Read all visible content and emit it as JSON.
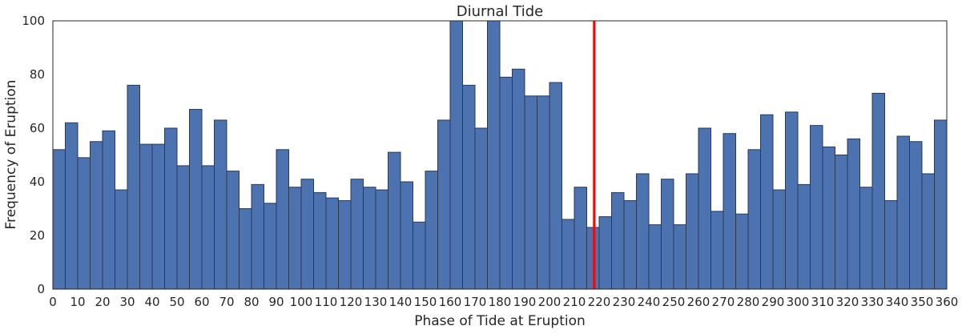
{
  "chart_data": {
    "type": "bar",
    "title": "Diurnal Tide",
    "xlabel": "Phase of Tide at Eruption",
    "ylabel": "Frequency of Eruption",
    "xlim": [
      0,
      360
    ],
    "ylim": [
      0,
      100
    ],
    "bin_width": 5,
    "x_ticks": [
      0,
      10,
      20,
      30,
      40,
      50,
      60,
      70,
      80,
      90,
      100,
      110,
      120,
      130,
      140,
      150,
      160,
      170,
      180,
      190,
      200,
      210,
      220,
      230,
      240,
      250,
      260,
      270,
      280,
      290,
      300,
      310,
      320,
      330,
      340,
      350,
      360
    ],
    "y_ticks": [
      0,
      20,
      40,
      60,
      80,
      100
    ],
    "bin_starts": [
      0,
      5,
      10,
      15,
      20,
      25,
      30,
      35,
      40,
      45,
      50,
      55,
      60,
      65,
      70,
      75,
      80,
      85,
      90,
      95,
      100,
      105,
      110,
      115,
      120,
      125,
      130,
      135,
      140,
      145,
      150,
      155,
      160,
      165,
      170,
      175,
      180,
      185,
      190,
      195,
      200,
      205,
      210,
      215,
      220,
      225,
      230,
      235,
      240,
      245,
      250,
      255,
      260,
      265,
      270,
      275,
      280,
      285,
      290,
      295,
      300,
      305,
      310,
      315,
      320,
      325,
      330,
      335,
      340,
      345,
      350,
      355
    ],
    "values": [
      52,
      62,
      49,
      55,
      59,
      37,
      76,
      54,
      54,
      60,
      46,
      67,
      46,
      63,
      44,
      30,
      39,
      32,
      52,
      38,
      41,
      36,
      34,
      33,
      41,
      38,
      37,
      51,
      40,
      25,
      44,
      63,
      100,
      76,
      60,
      100,
      79,
      82,
      72,
      72,
      77,
      26,
      38,
      23,
      27,
      36,
      33,
      43,
      24,
      41,
      24,
      43,
      60,
      29,
      58,
      28,
      52,
      65,
      37,
      66,
      39,
      61,
      53,
      50,
      56,
      38,
      73,
      33,
      57,
      55,
      43,
      63
    ],
    "vline": {
      "x": 218,
      "color": "#ff0000"
    },
    "bar_color": "#4c72b0",
    "grid": false
  }
}
